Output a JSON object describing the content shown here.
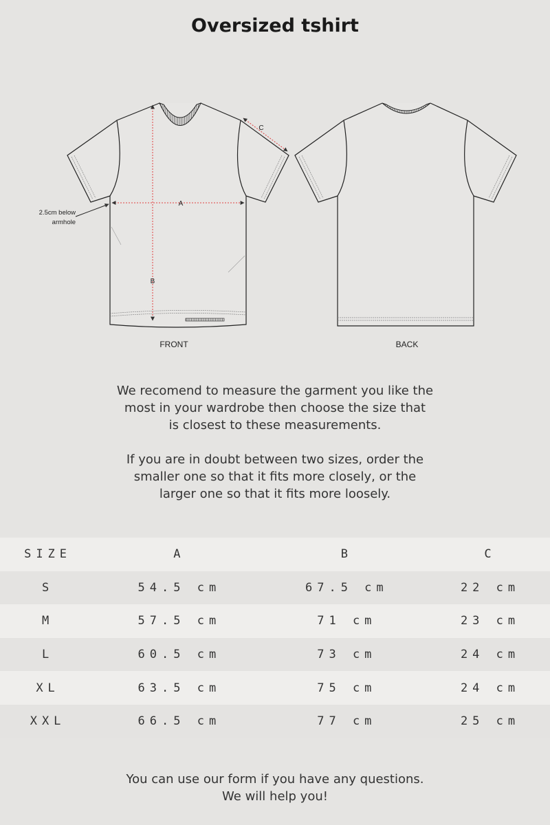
{
  "title": "Oversized tshirt",
  "diagram": {
    "front_label": "FRONT",
    "back_label": "BACK",
    "annotation": [
      "2.5cm below",
      "armhole"
    ],
    "measure_labels": {
      "a": "A",
      "b": "B",
      "c": "C"
    },
    "measure_color": "#e0403f"
  },
  "intro": [
    [
      "We recomend to measure the garment you like the",
      "most in your wardrobe then choose the size that",
      "is closest to these measurements."
    ],
    [
      "If you are in doubt between two sizes, order the",
      "smaller one so that it fits more closely, or the",
      "larger one so that it fits more loosely."
    ]
  ],
  "size_table": {
    "headers": [
      "SIZE",
      "A",
      "B",
      "C"
    ],
    "rows": [
      [
        "S",
        "54.5 cm",
        "67.5 cm",
        "22 cm"
      ],
      [
        "M",
        "57.5 cm",
        "71 cm",
        "23 cm"
      ],
      [
        "L",
        "60.5 cm",
        "73 cm",
        "24 cm"
      ],
      [
        "XL",
        "63.5 cm",
        "75 cm",
        "24 cm"
      ],
      [
        "XXL",
        "66.5 cm",
        "77 cm",
        "25 cm"
      ]
    ]
  },
  "footer": [
    "You can use our form if you have any questions.",
    "We will help you!"
  ]
}
